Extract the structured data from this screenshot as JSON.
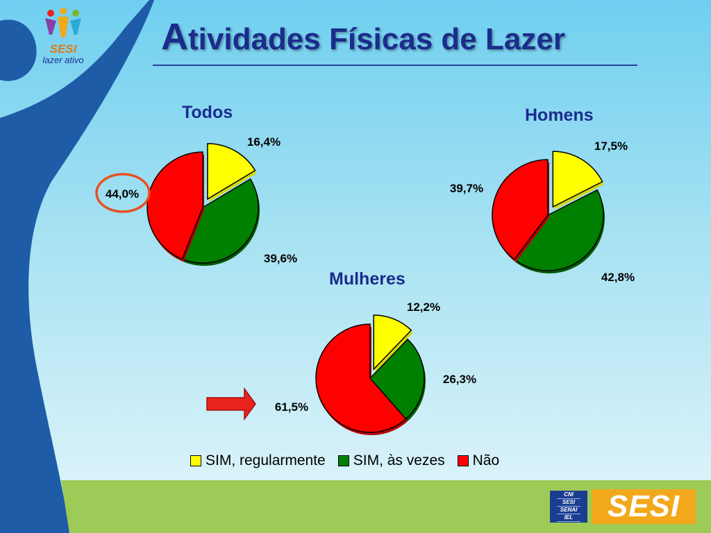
{
  "slide": {
    "title_initial": "A",
    "title_rest": "tividades Físicas de Lazer"
  },
  "branding": {
    "top_logo_brand": "SESI",
    "top_logo_tagline": "lazer ativo",
    "bottom_logo_lines": [
      "CNI",
      "SESI",
      "SENAI",
      "IEL"
    ],
    "bottom_logo_brand": "SESI"
  },
  "chart_data": [
    {
      "type": "pie",
      "title": "Todos",
      "categories": [
        "SIM, regularmente",
        "SIM, às vezes",
        "Não"
      ],
      "values": [
        16.4,
        39.6,
        44.0
      ],
      "labels": [
        "16,4%",
        "39,6%",
        "44,0%"
      ],
      "exploded": "SIM, regularmente",
      "highlight": "Não"
    },
    {
      "type": "pie",
      "title": "Homens",
      "categories": [
        "SIM, regularmente",
        "SIM, às vezes",
        "Não"
      ],
      "values": [
        17.5,
        42.8,
        39.7
      ],
      "labels": [
        "17,5%",
        "42,8%",
        "39,7%"
      ],
      "exploded": "SIM, regularmente"
    },
    {
      "type": "pie",
      "title": "Mulheres",
      "categories": [
        "SIM, regularmente",
        "SIM, às vezes",
        "Não"
      ],
      "values": [
        12.2,
        26.3,
        61.5
      ],
      "labels": [
        "12,2%",
        "26,3%",
        "61,5%"
      ],
      "exploded": "SIM, regularmente",
      "highlight_arrow": "Não"
    }
  ],
  "legend": [
    {
      "label": "SIM, regularmente",
      "color": "#ffff00"
    },
    {
      "label": "SIM, às vezes",
      "color": "#008000"
    },
    {
      "label": "Não",
      "color": "#ff0000"
    }
  ],
  "colors": {
    "title": "#1b2c8c",
    "circle_highlight": "#e8501e",
    "arrow": "#e8231e"
  }
}
